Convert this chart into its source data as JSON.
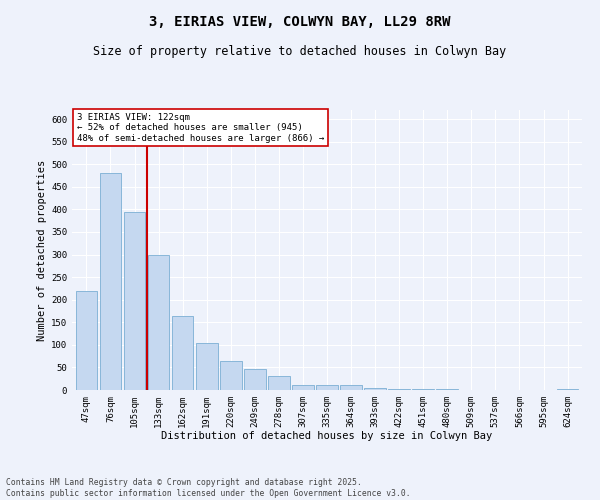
{
  "title": "3, EIRIAS VIEW, COLWYN BAY, LL29 8RW",
  "subtitle": "Size of property relative to detached houses in Colwyn Bay",
  "xlabel": "Distribution of detached houses by size in Colwyn Bay",
  "ylabel": "Number of detached properties",
  "categories": [
    "47sqm",
    "76sqm",
    "105sqm",
    "133sqm",
    "162sqm",
    "191sqm",
    "220sqm",
    "249sqm",
    "278sqm",
    "307sqm",
    "335sqm",
    "364sqm",
    "393sqm",
    "422sqm",
    "451sqm",
    "480sqm",
    "509sqm",
    "537sqm",
    "566sqm",
    "595sqm",
    "624sqm"
  ],
  "values": [
    220,
    480,
    395,
    300,
    163,
    105,
    65,
    47,
    30,
    10,
    10,
    10,
    5,
    3,
    3,
    2,
    1,
    0,
    1,
    0,
    2
  ],
  "bar_color": "#c5d8f0",
  "bar_edge_color": "#7bafd4",
  "vline_x": 2.5,
  "vline_color": "#cc0000",
  "annotation_text": "3 EIRIAS VIEW: 122sqm\n← 52% of detached houses are smaller (945)\n48% of semi-detached houses are larger (866) →",
  "annotation_box_color": "#ffffff",
  "annotation_box_edge": "#cc0000",
  "ylim": [
    0,
    620
  ],
  "yticks": [
    0,
    50,
    100,
    150,
    200,
    250,
    300,
    350,
    400,
    450,
    500,
    550,
    600
  ],
  "footnote": "Contains HM Land Registry data © Crown copyright and database right 2025.\nContains public sector information licensed under the Open Government Licence v3.0.",
  "background_color": "#eef2fb",
  "grid_color": "#ffffff",
  "title_fontsize": 10,
  "subtitle_fontsize": 8.5,
  "axis_fontsize": 7.5,
  "tick_fontsize": 6.5,
  "footnote_fontsize": 5.8
}
